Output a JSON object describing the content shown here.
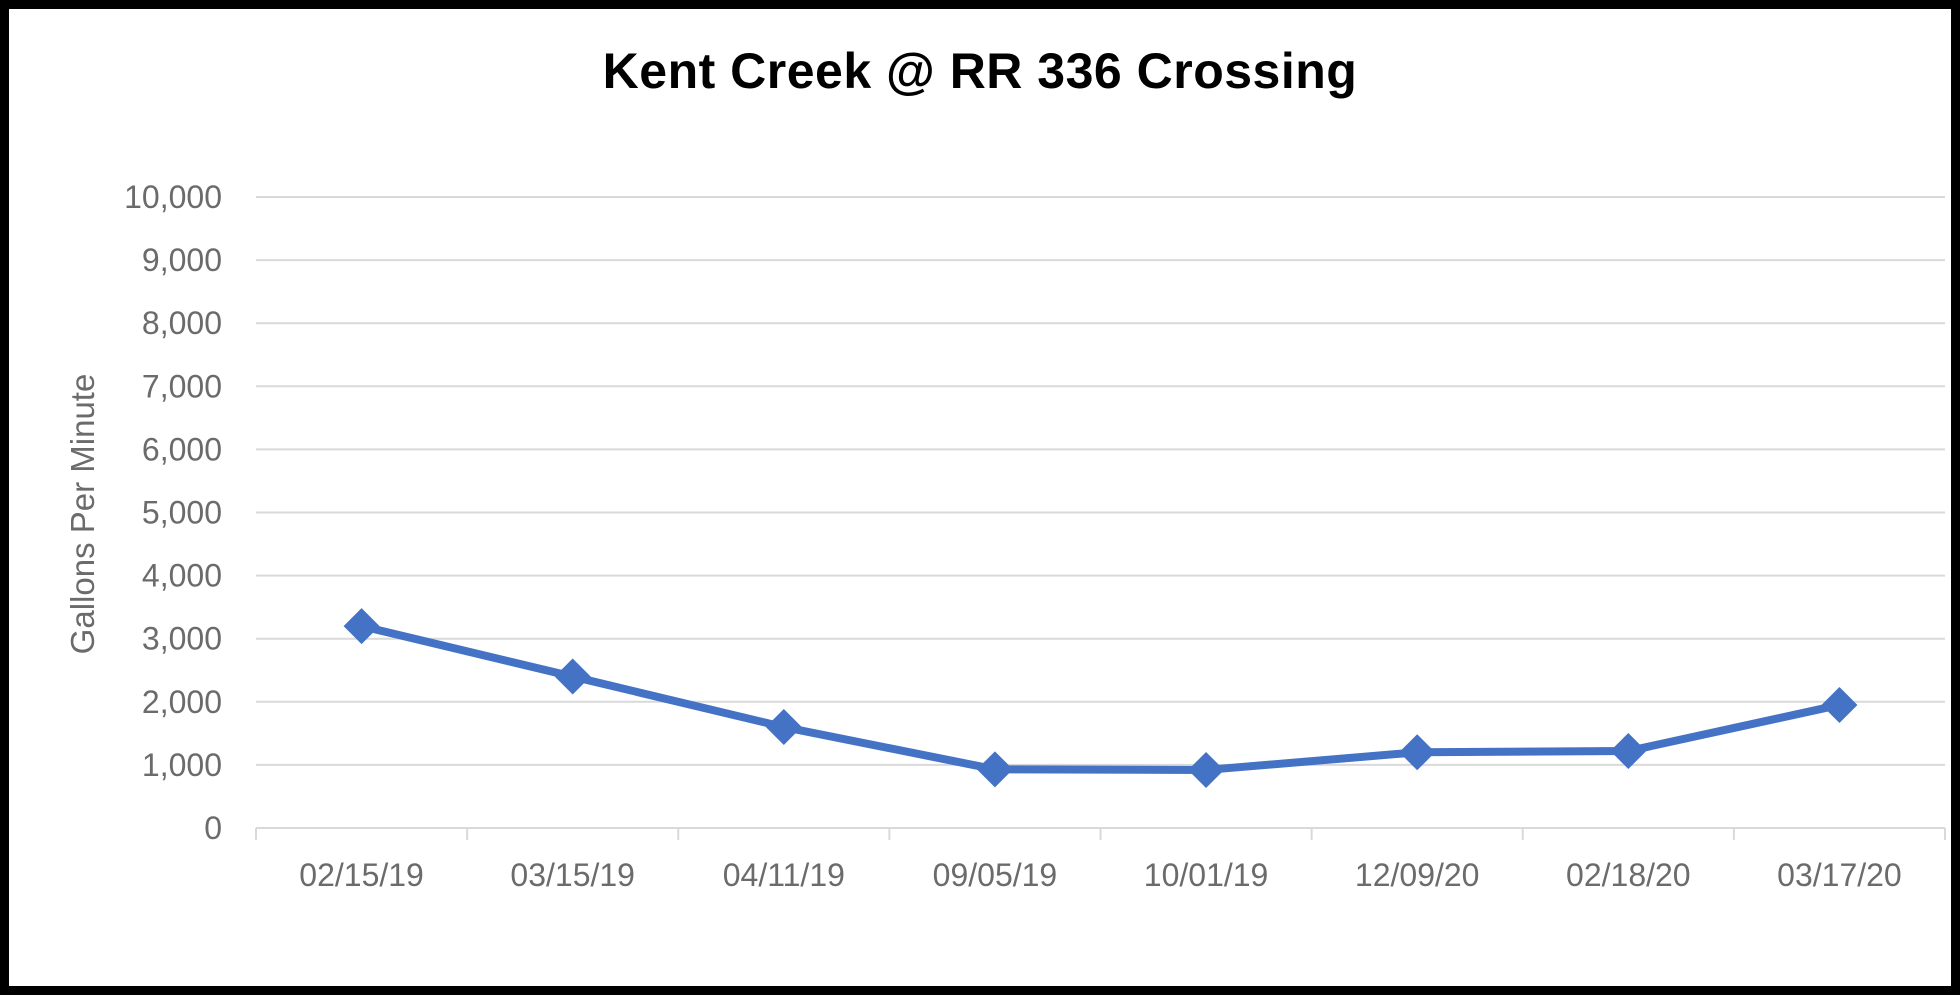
{
  "chart_data": {
    "type": "line",
    "title": "Kent Creek @ RR 336 Crossing",
    "xlabel": "",
    "ylabel": "Gallons Per Minute",
    "categories": [
      "02/15/19",
      "03/15/19",
      "04/11/19",
      "09/05/19",
      "10/01/19",
      "12/09/20",
      "02/18/20",
      "03/17/20"
    ],
    "series": [
      {
        "values": [
          3200,
          2400,
          1600,
          930,
          920,
          1200,
          1220,
          1950
        ]
      }
    ],
    "ylim": [
      0,
      10000
    ],
    "yticks": [
      0,
      1000,
      2000,
      3000,
      4000,
      5000,
      6000,
      7000,
      8000,
      9000,
      10000
    ],
    "ytick_labels": [
      "0",
      "1,000",
      "2,000",
      "3,000",
      "4,000",
      "5,000",
      "6,000",
      "7,000",
      "8,000",
      "9,000",
      "10,000"
    ],
    "grid": true,
    "legend": "none",
    "marker": "diamond",
    "colors": {
      "line": "#4472c4",
      "grid": "#d9d9d9",
      "axis": "#d9d9d9",
      "text": "#6b6b6b",
      "border": "#000000"
    }
  }
}
